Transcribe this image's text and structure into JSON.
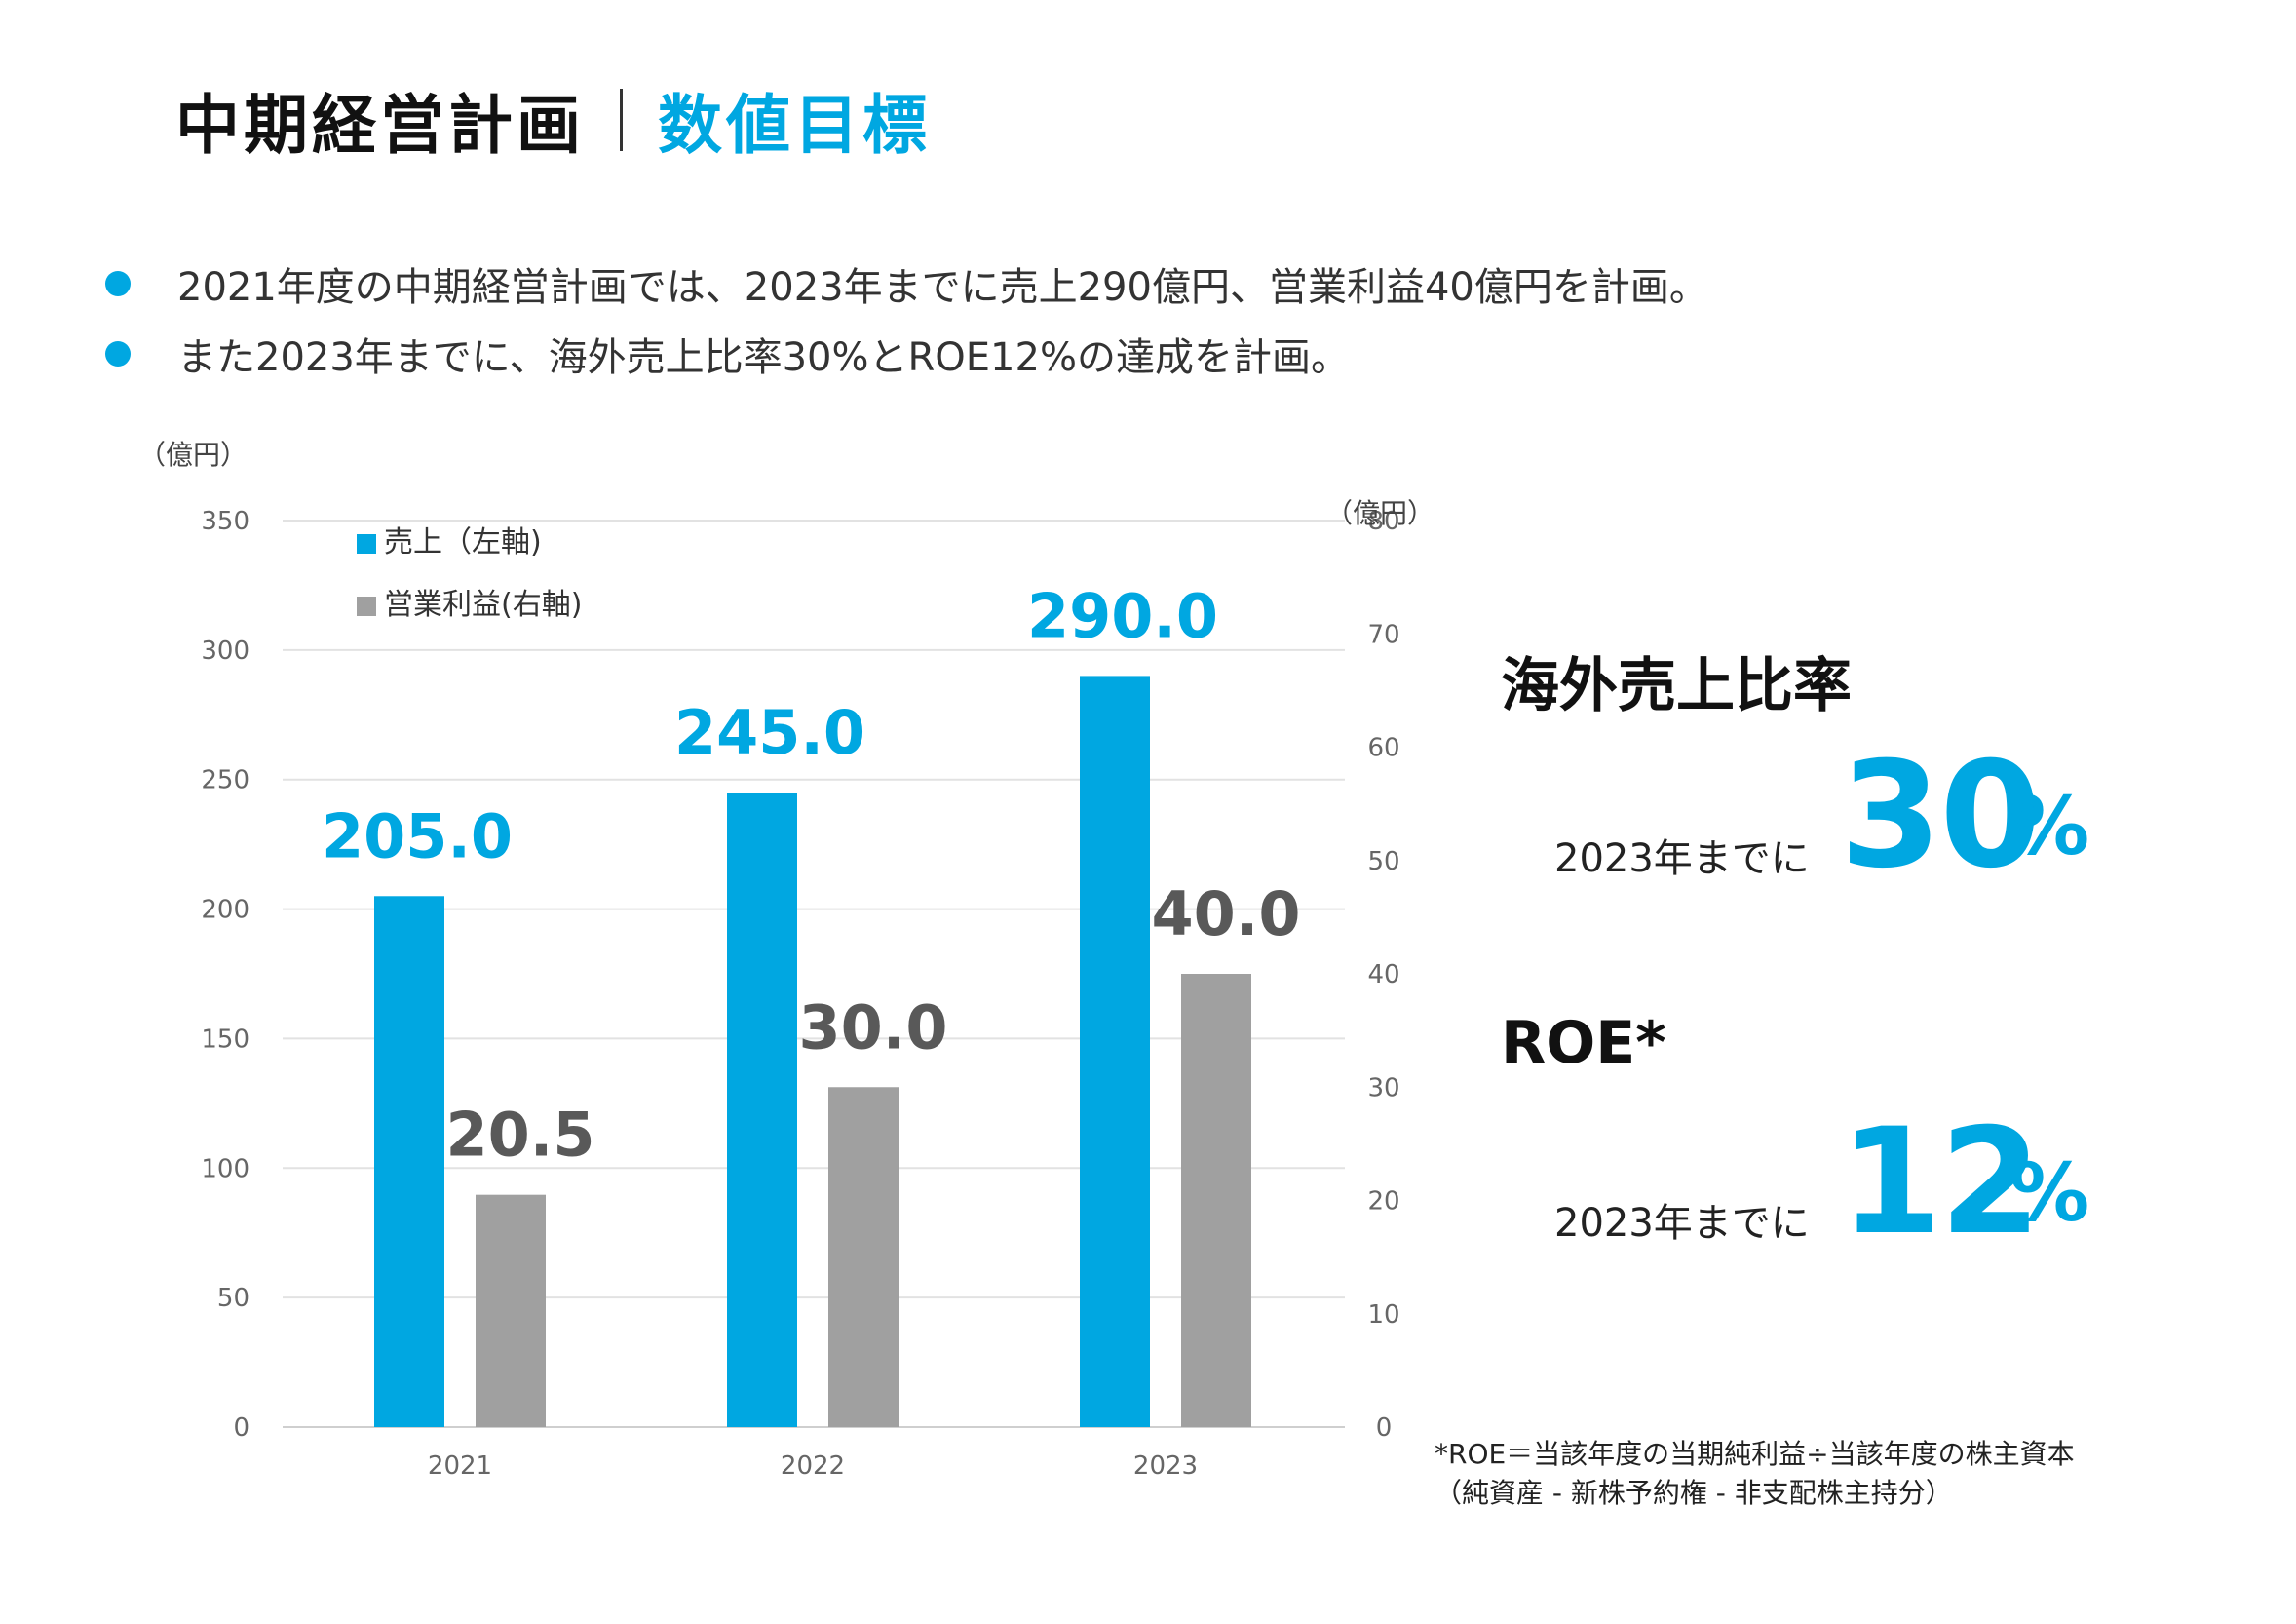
{
  "header": {
    "title": "中期経営計画",
    "subtitle": "数値目標"
  },
  "bullets": [
    "2021年度の中期経営計画では、2023年までに売上290億円、営業利益40億円を計画。",
    "また2023年までに、海外売上比率30%とROE12%の達成を計画。"
  ],
  "colors": {
    "accent": "#00a7e1",
    "gray": "#a0a0a0"
  },
  "chart_data": {
    "type": "bar",
    "categories": [
      "2021",
      "2022",
      "2023"
    ],
    "series": [
      {
        "name": "売上（左軸)",
        "axis": "left",
        "values": [
          205.0,
          245.0,
          290.0
        ],
        "labels": [
          "205.0",
          "245.0",
          "290.0"
        ],
        "color": "#00a7e1"
      },
      {
        "name": "営業利益(右軸)",
        "axis": "right",
        "values": [
          20.5,
          30.0,
          40.0
        ],
        "labels": [
          "20.5",
          "30.0",
          "40.0"
        ],
        "color": "#a0a0a0"
      }
    ],
    "left_axis": {
      "unit": "（億円）",
      "min": 0,
      "max": 350,
      "ticks": [
        "0",
        "50",
        "100",
        "150",
        "200",
        "250",
        "300",
        "350"
      ]
    },
    "right_axis": {
      "unit": "（億円）",
      "min": 0,
      "max": 80,
      "ticks": [
        "0",
        "10",
        "20",
        "30",
        "40",
        "50",
        "60",
        "70",
        "80"
      ]
    },
    "grid": true,
    "legend": "top-left"
  },
  "kpis": [
    {
      "heading": "海外売上比率",
      "note": "2023年までに",
      "value": "30",
      "unit": "%"
    },
    {
      "heading": "ROE*",
      "note": "2023年までに",
      "value": "12",
      "unit": "%"
    }
  ],
  "footnote": {
    "line1": "*ROE＝当該年度の当期純利益÷当該年度の株主資本",
    "line2": "（純資産 - 新株予約権 - 非支配株主持分）"
  }
}
